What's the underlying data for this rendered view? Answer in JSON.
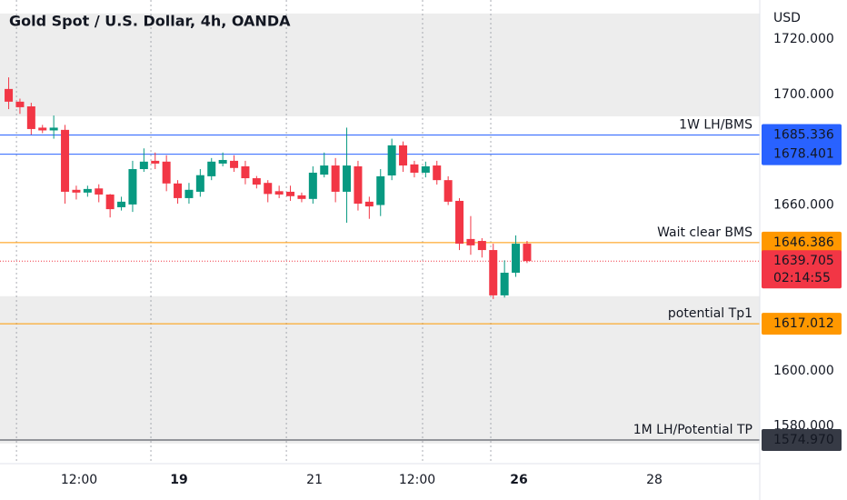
{
  "chart_data": {
    "type": "candlestick",
    "title": "Gold Spot / U.S. Dollar, 4h, OANDA",
    "currency": "USD",
    "xlim": [
      -0.77,
      66.65
    ],
    "ylim": [
      1566.4,
      1734.2
    ],
    "yticks": [
      {
        "value": 1720,
        "label": "1720.000"
      },
      {
        "value": 1700,
        "label": "1700.000"
      },
      {
        "value": 1660,
        "label": "1660.000"
      },
      {
        "value": 1600,
        "label": "1600.000"
      },
      {
        "value": 1580,
        "label": "1580.000"
      }
    ],
    "xticks": [
      {
        "value": 6.25,
        "label": "12:00"
      },
      {
        "value": 15.12,
        "label": "19",
        "bold": true
      },
      {
        "value": 27.14,
        "label": "21"
      },
      {
        "value": 36.25,
        "label": "12:00"
      },
      {
        "value": 45.28,
        "label": "26",
        "bold": true
      },
      {
        "value": 57.3,
        "label": "28"
      }
    ],
    "xgrid": [
      0.69,
      12.62,
      24.64,
      36.73,
      42.78
    ],
    "zones": [
      [
        1729.3,
        1692.1
      ],
      [
        1627,
        1573.7
      ]
    ],
    "up_color": "#089981",
    "down_color": "#f23645",
    "x": [
      0,
      1,
      2,
      3,
      4,
      5,
      6,
      7,
      8,
      9,
      10,
      11,
      12,
      13,
      14,
      15,
      16,
      17,
      18,
      19,
      20,
      21,
      22,
      23,
      24,
      25,
      26,
      27,
      28,
      29,
      30,
      31,
      32,
      33,
      34,
      35,
      36,
      37,
      38,
      39,
      40,
      41,
      42,
      43,
      44,
      45,
      46
    ],
    "open": [
      1702,
      1697.4,
      1695.7,
      1688,
      1687,
      1687.2,
      1665.5,
      1664.5,
      1666,
      1663.8,
      1659.2,
      1660.2,
      1673,
      1676,
      1675.7,
      1667.8,
      1662.5,
      1664.8,
      1670.4,
      1675,
      1676,
      1674,
      1669.7,
      1668,
      1665,
      1664.8,
      1663.5,
      1662.2,
      1671,
      1674.3,
      1664.8,
      1674,
      1661.2,
      1660,
      1670.7,
      1681.6,
      1674.7,
      1671.7,
      1674.3,
      1669,
      1661.5,
      1647.7,
      1647,
      1643.7,
      1627.3,
      1635.5,
      1646
    ],
    "high": [
      1706.2,
      1698.5,
      1697,
      1689,
      1692.4,
      1689,
      1667,
      1667,
      1667.5,
      1664,
      1663,
      1676,
      1680.5,
      1679,
      1678,
      1669,
      1668,
      1673,
      1677,
      1679,
      1678,
      1676,
      1670.5,
      1669,
      1667,
      1667,
      1664.5,
      1674,
      1679,
      1677,
      1688,
      1676,
      1663,
      1673,
      1684,
      1683,
      1676,
      1675.7,
      1676,
      1670.4,
      1662.5,
      1656,
      1648,
      1646,
      1640,
      1649,
      1647
    ],
    "low": [
      1694.7,
      1693,
      1685.5,
      1686,
      1684,
      1660.5,
      1662,
      1663,
      1661,
      1655.5,
      1658,
      1657.5,
      1672,
      1673,
      1665,
      1660.5,
      1660.5,
      1663,
      1669,
      1674,
      1672,
      1667.5,
      1666,
      1661,
      1662.5,
      1661.5,
      1661,
      1660.5,
      1670,
      1661,
      1653.6,
      1658,
      1655,
      1656,
      1669,
      1672,
      1670,
      1670,
      1667.4,
      1660,
      1643.7,
      1642,
      1641,
      1626,
      1626.5,
      1634,
      1639
    ],
    "close": [
      1697.4,
      1695.4,
      1687.5,
      1687,
      1688,
      1664.8,
      1664.5,
      1665.8,
      1663.8,
      1658.5,
      1661.2,
      1673,
      1675.7,
      1675,
      1667.8,
      1662.5,
      1665.5,
      1670.8,
      1675.7,
      1676.3,
      1673.4,
      1669.7,
      1667.4,
      1664,
      1663.8,
      1663.2,
      1662.2,
      1671.7,
      1674.3,
      1664.8,
      1674.3,
      1660.5,
      1659.5,
      1670.4,
      1681.6,
      1674.3,
      1671.7,
      1674,
      1669,
      1661.2,
      1646,
      1645.4,
      1643.7,
      1627.3,
      1635.5,
      1646,
      1639.7
    ],
    "levels": [
      {
        "name": "1W LH/BMS",
        "value": 1685.336,
        "label": "1685.336",
        "color": "#2962ff",
        "text_color": "#ffffff"
      },
      {
        "value": 1678.401,
        "label": "1678.401",
        "color": "#2962ff",
        "text_color": "#ffffff"
      },
      {
        "name": "Wait clear BMS",
        "value": 1646.386,
        "label": "1646.386",
        "color": "#ff9800",
        "text_color": "#131722"
      },
      {
        "value": 1639.705,
        "label": "1639.705",
        "color": "#f23645",
        "text_color": "#ffffff",
        "dotted": true,
        "countdown": "02:14:55"
      },
      {
        "name": "potential Tp1",
        "value": 1617.012,
        "label": "1617.012",
        "color": "#ff9800",
        "text_color": "#131722"
      },
      {
        "name": "1M LH/Potential TP",
        "value": 1574.97,
        "label": "1574.970",
        "color": "#363a45",
        "text_color": "#ffffff"
      }
    ]
  }
}
